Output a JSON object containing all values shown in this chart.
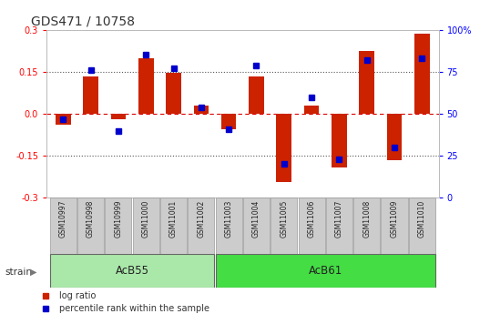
{
  "title": "GDS471 / 10758",
  "samples": [
    "GSM10997",
    "GSM10998",
    "GSM10999",
    "GSM11000",
    "GSM11001",
    "GSM11002",
    "GSM11003",
    "GSM11004",
    "GSM11005",
    "GSM11006",
    "GSM11007",
    "GSM11008",
    "GSM11009",
    "GSM11010"
  ],
  "log_ratio": [
    -0.04,
    0.135,
    -0.02,
    0.2,
    0.145,
    0.03,
    -0.055,
    0.135,
    -0.245,
    0.03,
    -0.19,
    0.225,
    -0.165,
    0.285
  ],
  "percentile_rank": [
    47,
    76,
    40,
    85,
    77,
    54,
    41,
    79,
    20,
    60,
    23,
    82,
    30,
    83
  ],
  "groups": [
    {
      "label": "AcB55",
      "start": 0,
      "end": 5,
      "color": "#aae8aa"
    },
    {
      "label": "AcB61",
      "start": 6,
      "end": 13,
      "color": "#44dd44"
    }
  ],
  "ylim": [
    -0.3,
    0.3
  ],
  "yticks_left": [
    -0.3,
    -0.15,
    0.0,
    0.15,
    0.3
  ],
  "yticks_right": [
    0,
    25,
    50,
    75,
    100
  ],
  "hlines_dotted": [
    -0.15,
    0.15
  ],
  "hline_zero": 0.0,
  "bar_color": "#cc2200",
  "percentile_color": "#0000cc",
  "background_color": "#ffffff",
  "plot_bg_color": "#ffffff",
  "dotted_line_color": "#555555",
  "zero_line_color": "#dd0000",
  "tick_label_fontsize": 7,
  "title_fontsize": 10,
  "legend_fontsize": 7,
  "strain_label": "strain",
  "bar_width": 0.55,
  "percentile_marker_size": 4,
  "sample_box_color": "#cccccc",
  "sample_box_edge": "#999999"
}
